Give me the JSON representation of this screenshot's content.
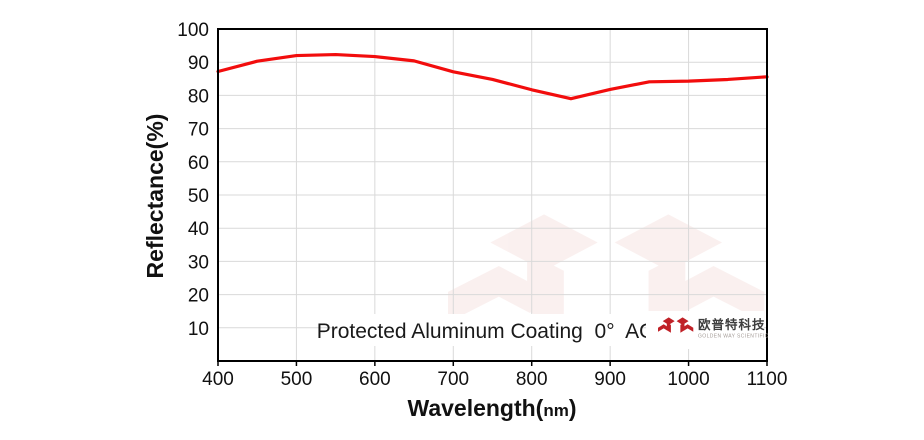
{
  "figure": {
    "background": "#ffffff"
  },
  "chart_data": {
    "type": "line",
    "xlabel": {
      "prefix": "Wavelength(",
      "unit": "nm",
      "suffix": ")"
    },
    "ylabel": "Reflectance(%)",
    "xlim": [
      400,
      1100
    ],
    "ylim": [
      0,
      100
    ],
    "x_ticks": [
      400,
      500,
      600,
      700,
      800,
      900,
      1000,
      1100
    ],
    "y_ticks": [
      10,
      20,
      30,
      40,
      50,
      60,
      70,
      80,
      90,
      100
    ],
    "grid": true,
    "legend": "none",
    "annotation": "Protected Aluminum Coating  0°  AOI",
    "series": [
      {
        "name": "Protected Aluminum Coating 0° AOI",
        "color": "#f20d0d",
        "x": [
          400,
          450,
          500,
          550,
          600,
          650,
          700,
          750,
          800,
          850,
          900,
          950,
          1000,
          1050,
          1100
        ],
        "values": [
          87.2,
          90.3,
          92.0,
          92.3,
          91.7,
          90.4,
          87.1,
          84.8,
          81.7,
          79.0,
          81.8,
          84.1,
          84.3,
          84.8,
          85.6
        ]
      }
    ]
  },
  "logo": {
    "icon": "golden-way-logo-icon",
    "cn": "欧普特科技",
    "en": "GOLDEN WAY SCIENTIFIC",
    "red": "#c02127",
    "cn_color": "#3d3d3d",
    "en_color": "#a39b96"
  },
  "colors": {
    "curve": "#f20d0d",
    "grid": "#d9d9d9",
    "axis": "#000000",
    "tick_label": "#111111",
    "watermark": "#c23b31",
    "watermark_opacity": 0.07
  }
}
